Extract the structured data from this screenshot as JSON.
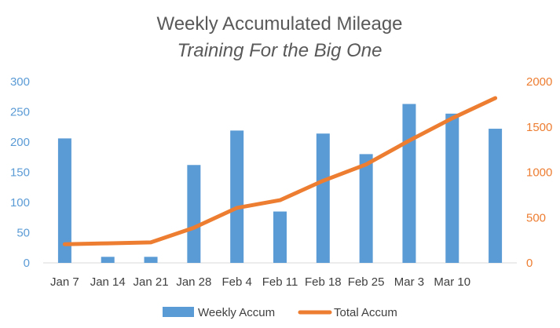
{
  "chart_data": {
    "type": "bar+line",
    "title": "Weekly Accumulated Mileage",
    "subtitle": "Training For the Big One",
    "categories": [
      "Jan 7",
      "Jan 14",
      "Jan 21",
      "Jan 28",
      "Feb 4",
      "Feb 11",
      "Feb 18",
      "Feb 25",
      "Mar 3",
      "Mar 10",
      ""
    ],
    "series": [
      {
        "name": "Weekly Accum",
        "type": "bar",
        "axis": "left",
        "color": "#5B9BD5",
        "values": [
          206,
          10,
          10,
          162,
          219,
          85,
          214,
          180,
          263,
          247,
          222
        ]
      },
      {
        "name": "Total Accum",
        "type": "line",
        "axis": "right",
        "color": "#ED7D31",
        "values": [
          206,
          216,
          226,
          388,
          607,
          692,
          906,
          1086,
          1349,
          1596,
          1818
        ]
      }
    ],
    "y_left": {
      "min": 0,
      "max": 300,
      "ticks": [
        "0",
        "50",
        "100",
        "150",
        "200",
        "250",
        "300"
      ],
      "color": "#5B9BD5"
    },
    "y_right": {
      "min": 0,
      "max": 2000,
      "ticks": [
        "0",
        "500",
        "1000",
        "1500",
        "2000"
      ],
      "color": "#ED7D31"
    },
    "grid": false,
    "legend": "bottom"
  }
}
